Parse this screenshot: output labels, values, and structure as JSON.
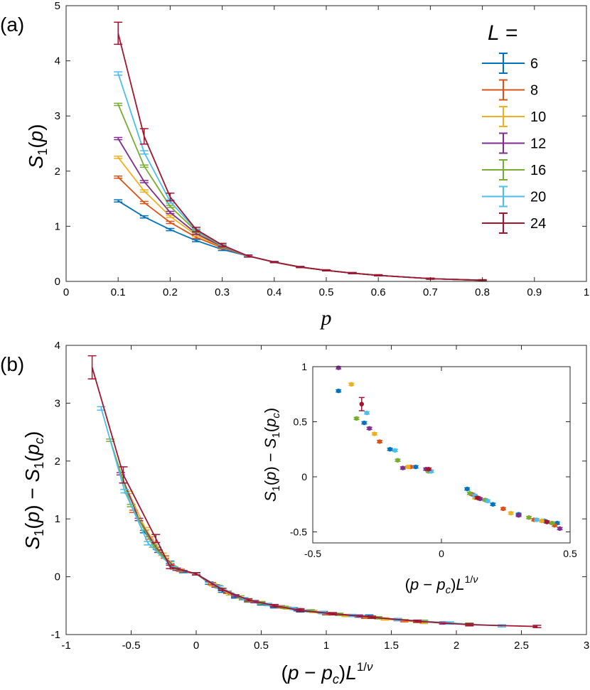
{
  "figure": {
    "panel_a_label": "(a)",
    "panel_b_label": "(b)"
  },
  "chart_data": [
    {
      "id": "a",
      "type": "line",
      "title": "",
      "xlabel": "p",
      "ylabel": "S_1(p)",
      "xlim": [
        0,
        1
      ],
      "ylim": [
        0,
        5
      ],
      "xticks": [
        0,
        0.1,
        0.2,
        0.3,
        0.4,
        0.5,
        0.6,
        0.7,
        0.8,
        0.9,
        1
      ],
      "xtick_labels": [
        "0",
        "0.1",
        "0.2",
        "0.3",
        "0.4",
        "0.5",
        "0.6",
        "0.7",
        "0.8",
        "0.9",
        "1"
      ],
      "yticks": [
        0,
        1,
        2,
        3,
        4,
        5
      ],
      "ytick_labels": [
        "0",
        "1",
        "2",
        "3",
        "4",
        "5"
      ],
      "reference_line": {
        "y": 0,
        "style": "dotted"
      },
      "legend": {
        "title": "L =",
        "position": "top-right",
        "labels": [
          "6",
          "8",
          "10",
          "12",
          "16",
          "20",
          "24"
        ]
      },
      "series": [
        {
          "name": "6",
          "color": "#0072BD",
          "x": [
            0.1,
            0.15,
            0.2,
            0.25,
            0.3,
            0.35,
            0.4,
            0.45,
            0.5,
            0.55,
            0.6,
            0.7,
            0.8
          ],
          "y": [
            1.46,
            1.17,
            0.94,
            0.74,
            0.58,
            0.46,
            0.35,
            0.26,
            0.2,
            0.15,
            0.11,
            0.05,
            0.02
          ],
          "err": [
            0.02,
            0.02,
            0.02,
            0.02,
            0.02,
            0.01,
            0.01,
            0.01,
            0.01,
            0.01,
            0.01,
            0.01,
            0.01
          ]
        },
        {
          "name": "8",
          "color": "#D95319",
          "x": [
            0.1,
            0.15,
            0.2,
            0.25,
            0.3,
            0.35,
            0.4,
            0.45,
            0.5,
            0.55,
            0.6,
            0.7,
            0.8
          ],
          "y": [
            1.89,
            1.43,
            1.07,
            0.8,
            0.61,
            0.46,
            0.35,
            0.26,
            0.2,
            0.15,
            0.11,
            0.05,
            0.02
          ],
          "err": [
            0.02,
            0.02,
            0.02,
            0.02,
            0.02,
            0.01,
            0.01,
            0.01,
            0.01,
            0.01,
            0.01,
            0.01,
            0.01
          ]
        },
        {
          "name": "10",
          "color": "#EDB120",
          "x": [
            0.1,
            0.15,
            0.2,
            0.25,
            0.3,
            0.35,
            0.4,
            0.45,
            0.5,
            0.55,
            0.6,
            0.7,
            0.8
          ],
          "y": [
            2.25,
            1.64,
            1.18,
            0.84,
            0.62,
            0.46,
            0.35,
            0.26,
            0.2,
            0.15,
            0.11,
            0.05,
            0.02
          ],
          "err": [
            0.02,
            0.02,
            0.02,
            0.02,
            0.02,
            0.01,
            0.01,
            0.01,
            0.01,
            0.01,
            0.01,
            0.01,
            0.01
          ]
        },
        {
          "name": "12",
          "color": "#7E2F8E",
          "x": [
            0.1,
            0.15,
            0.2,
            0.25,
            0.3,
            0.35,
            0.4,
            0.45,
            0.5,
            0.55,
            0.6,
            0.7,
            0.8
          ],
          "y": [
            2.59,
            1.81,
            1.25,
            0.87,
            0.63,
            0.46,
            0.35,
            0.26,
            0.2,
            0.15,
            0.11,
            0.05,
            0.02
          ],
          "err": [
            0.02,
            0.02,
            0.02,
            0.02,
            0.02,
            0.01,
            0.01,
            0.01,
            0.01,
            0.01,
            0.01,
            0.01,
            0.01
          ]
        },
        {
          "name": "16",
          "color": "#77AC30",
          "x": [
            0.1,
            0.15,
            0.2,
            0.25,
            0.3,
            0.35,
            0.4,
            0.45,
            0.5,
            0.55,
            0.6,
            0.7,
            0.8
          ],
          "y": [
            3.21,
            2.09,
            1.36,
            0.91,
            0.64,
            0.46,
            0.35,
            0.26,
            0.2,
            0.15,
            0.11,
            0.05,
            0.02
          ],
          "err": [
            0.02,
            0.02,
            0.02,
            0.02,
            0.02,
            0.01,
            0.01,
            0.01,
            0.01,
            0.01,
            0.01,
            0.01,
            0.01
          ]
        },
        {
          "name": "20",
          "color": "#4DBEEE",
          "x": [
            0.1,
            0.15,
            0.2,
            0.25,
            0.3,
            0.35,
            0.4,
            0.45,
            0.5,
            0.55,
            0.6,
            0.7,
            0.8
          ],
          "y": [
            3.77,
            2.34,
            1.45,
            0.93,
            0.65,
            0.46,
            0.35,
            0.26,
            0.2,
            0.15,
            0.11,
            0.05,
            0.02
          ],
          "err": [
            0.03,
            0.03,
            0.03,
            0.02,
            0.02,
            0.01,
            0.01,
            0.01,
            0.01,
            0.01,
            0.01,
            0.01,
            0.01
          ]
        },
        {
          "name": "24",
          "color": "#A2142F",
          "x": [
            0.1,
            0.15,
            0.2,
            0.25,
            0.3,
            0.35,
            0.4,
            0.45,
            0.5,
            0.55,
            0.6,
            0.7,
            0.8
          ],
          "y": [
            4.5,
            2.63,
            1.53,
            0.94,
            0.66,
            0.46,
            0.35,
            0.26,
            0.2,
            0.15,
            0.11,
            0.05,
            0.02
          ],
          "err": [
            0.2,
            0.14,
            0.07,
            0.04,
            0.03,
            0.02,
            0.01,
            0.01,
            0.01,
            0.01,
            0.01,
            0.01,
            0.01
          ]
        }
      ]
    },
    {
      "id": "b",
      "type": "line",
      "title": "",
      "xlabel": "(p - p_c) L^{1/ν}",
      "ylabel": "S_1(p) - S_1(p_c)",
      "xlim": [
        -1,
        3
      ],
      "ylim": [
        -1,
        4
      ],
      "xticks": [
        -1,
        -0.5,
        0,
        0.5,
        1,
        1.5,
        2,
        2.5,
        3
      ],
      "xtick_labels": [
        "-1",
        "-0.5",
        "0",
        "0.5",
        "1",
        "1.5",
        "2",
        "2.5",
        "3"
      ],
      "yticks": [
        -1,
        0,
        1,
        2,
        3,
        4
      ],
      "ytick_labels": [
        "-1",
        "0",
        "1",
        "2",
        "3",
        "4"
      ],
      "series": [
        {
          "name": "6",
          "color": "#0072BD",
          "x": [
            -0.4,
            -0.3,
            -0.2,
            -0.1,
            0,
            0.1,
            0.2,
            0.3,
            0.4,
            0.5,
            0.6,
            0.8,
            1.0,
            1.33
          ],
          "y": [
            0.78,
            0.49,
            0.25,
            0.09,
            0.05,
            -0.11,
            -0.25,
            -0.35,
            -0.42,
            -0.47,
            -0.52,
            -0.59,
            -0.64,
            -0.68
          ],
          "err": [
            0.02,
            0.02,
            0.02,
            0.02,
            0.02,
            0.02,
            0.02,
            0.02,
            0.02,
            0.02,
            0.02,
            0.02,
            0.02,
            0.02
          ]
        },
        {
          "name": "8",
          "color": "#D95319",
          "x": [
            -0.48,
            -0.36,
            -0.24,
            -0.12,
            0,
            0.12,
            0.24,
            0.36,
            0.5,
            0.65,
            0.8,
            1.0,
            1.3,
            1.6
          ],
          "y": [
            1.13,
            0.67,
            0.34,
            0.11,
            0.05,
            -0.12,
            -0.27,
            -0.38,
            -0.45,
            -0.52,
            -0.57,
            -0.64,
            -0.7,
            -0.76
          ],
          "err": [
            0.02,
            0.02,
            0.02,
            0.02,
            0.02,
            0.02,
            0.02,
            0.02,
            0.02,
            0.02,
            0.02,
            0.02,
            0.02,
            0.02
          ]
        },
        {
          "name": "10",
          "color": "#EDB120",
          "x": [
            -0.52,
            -0.39,
            -0.26,
            -0.13,
            0,
            0.13,
            0.26,
            0.4,
            0.55,
            0.7,
            0.9,
            1.15,
            1.45,
            1.75
          ],
          "y": [
            1.46,
            0.83,
            0.39,
            0.12,
            0.05,
            -0.14,
            -0.3,
            -0.41,
            -0.48,
            -0.54,
            -0.6,
            -0.67,
            -0.73,
            -0.79
          ],
          "err": [
            0.02,
            0.02,
            0.02,
            0.02,
            0.02,
            0.02,
            0.02,
            0.02,
            0.02,
            0.02,
            0.02,
            0.02,
            0.02,
            0.02
          ]
        },
        {
          "name": "12",
          "color": "#7E2F8E",
          "x": [
            -0.58,
            -0.44,
            -0.29,
            -0.15,
            0,
            0.15,
            0.3,
            0.45,
            0.6,
            0.78,
            0.98,
            1.25,
            1.55,
            1.9
          ],
          "y": [
            1.78,
            0.99,
            0.44,
            0.13,
            0.05,
            -0.16,
            -0.33,
            -0.43,
            -0.5,
            -0.57,
            -0.62,
            -0.68,
            -0.74,
            -0.8
          ],
          "err": [
            0.02,
            0.02,
            0.02,
            0.02,
            0.02,
            0.02,
            0.02,
            0.02,
            0.02,
            0.02,
            0.02,
            0.02,
            0.02,
            0.02
          ]
        },
        {
          "name": "16",
          "color": "#77AC30",
          "x": [
            -0.66,
            -0.5,
            -0.33,
            -0.17,
            0,
            0.17,
            0.34,
            0.5,
            0.68,
            0.88,
            1.1,
            1.4,
            1.75,
            2.1
          ],
          "y": [
            2.36,
            1.23,
            0.53,
            0.15,
            0.05,
            -0.17,
            -0.35,
            -0.45,
            -0.53,
            -0.59,
            -0.65,
            -0.71,
            -0.77,
            -0.82
          ],
          "err": [
            0.02,
            0.02,
            0.02,
            0.02,
            0.02,
            0.02,
            0.02,
            0.02,
            0.02,
            0.02,
            0.02,
            0.02,
            0.02,
            0.02
          ]
        },
        {
          "name": "20",
          "color": "#4DBEEE",
          "x": [
            -0.73,
            -0.55,
            -0.37,
            -0.18,
            0,
            0.18,
            0.37,
            0.55,
            0.75,
            0.97,
            1.2,
            1.55,
            1.95,
            2.35
          ],
          "y": [
            2.91,
            1.48,
            0.58,
            0.16,
            0.05,
            -0.18,
            -0.38,
            -0.48,
            -0.55,
            -0.62,
            -0.67,
            -0.74,
            -0.8,
            -0.85
          ],
          "err": [
            0.03,
            0.03,
            0.03,
            0.02,
            0.02,
            0.02,
            0.02,
            0.02,
            0.02,
            0.02,
            0.02,
            0.02,
            0.02,
            0.02
          ]
        },
        {
          "name": "24",
          "color": "#A2142F",
          "x": [
            -0.8,
            -0.56,
            -0.31,
            -0.2,
            0,
            0.2,
            0.4,
            0.6,
            0.8,
            1.05,
            1.35,
            1.7,
            2.1,
            2.62
          ],
          "y": [
            3.62,
            1.76,
            0.66,
            0.17,
            0.05,
            -0.22,
            -0.4,
            -0.5,
            -0.58,
            -0.64,
            -0.7,
            -0.77,
            -0.83,
            -0.86
          ],
          "err": [
            0.2,
            0.14,
            0.07,
            0.03,
            0.02,
            0.02,
            0.02,
            0.02,
            0.02,
            0.02,
            0.02,
            0.02,
            0.02,
            0.02
          ]
        }
      ]
    },
    {
      "id": "b-inset",
      "type": "scatter",
      "title": "",
      "xlabel": "(p - p_c) L^{1/ν}",
      "ylabel": "S_1(p) - S_1(p_c)",
      "xlim": [
        -0.5,
        0.5
      ],
      "ylim": [
        -0.6,
        1.0
      ],
      "xticks": [
        -0.5,
        0,
        0.5
      ],
      "xtick_labels": [
        "-0.5",
        "0",
        "0.5"
      ],
      "yticks": [
        -0.5,
        0,
        0.5,
        1
      ],
      "ytick_labels": [
        "-0.5",
        "0",
        "0.5",
        "1"
      ],
      "series": [
        {
          "name": "6",
          "color": "#0072BD",
          "x": [
            -0.4,
            -0.3,
            -0.2,
            -0.1,
            -0.04,
            0.1,
            0.2,
            0.3,
            0.4,
            0.45
          ],
          "y": [
            0.78,
            0.49,
            0.25,
            0.09,
            0.05,
            -0.11,
            -0.25,
            -0.34,
            -0.4,
            -0.42
          ],
          "err": [
            0.01,
            0.01,
            0.01,
            0.01,
            0.01,
            0.01,
            0.01,
            0.01,
            0.01,
            0.01
          ]
        },
        {
          "name": "8",
          "color": "#D95319",
          "x": [
            -0.24,
            -0.12,
            -0.05,
            0.12,
            0.24,
            0.36,
            0.44
          ],
          "y": [
            0.32,
            0.09,
            0.06,
            -0.16,
            -0.29,
            -0.39,
            -0.44
          ],
          "err": [
            0.01,
            0.01,
            0.01,
            0.01,
            0.01,
            0.01,
            0.01
          ]
        },
        {
          "name": "10",
          "color": "#EDB120",
          "x": [
            -0.35,
            -0.26,
            -0.13,
            -0.05,
            0.13,
            0.27,
            0.39
          ],
          "y": [
            0.84,
            0.39,
            0.09,
            0.06,
            -0.19,
            -0.33,
            -0.4
          ],
          "err": [
            0.01,
            0.01,
            0.01,
            0.01,
            0.01,
            0.01,
            0.01
          ]
        },
        {
          "name": "12",
          "color": "#7E2F8E",
          "x": [
            -0.4,
            -0.28,
            -0.15,
            -0.06,
            0.15,
            0.3,
            0.46
          ],
          "y": [
            0.99,
            0.44,
            0.08,
            0.07,
            -0.2,
            -0.35,
            -0.47
          ],
          "err": [
            0.01,
            0.01,
            0.01,
            0.01,
            0.01,
            0.01,
            0.01
          ]
        },
        {
          "name": "16",
          "color": "#77AC30",
          "x": [
            -0.33,
            -0.17,
            -0.05,
            0.11,
            0.17,
            0.34,
            0.43
          ],
          "y": [
            0.53,
            0.15,
            0.05,
            -0.15,
            -0.21,
            -0.37,
            -0.42
          ],
          "err": [
            0.01,
            0.01,
            0.01,
            0.01,
            0.01,
            0.01,
            0.01
          ]
        },
        {
          "name": "20",
          "color": "#4DBEEE",
          "x": [
            -0.29,
            -0.18,
            -0.04,
            0.13,
            0.18,
            0.37
          ],
          "y": [
            0.58,
            0.24,
            0.05,
            -0.17,
            -0.22,
            -0.39
          ],
          "err": [
            0.01,
            0.01,
            0.01,
            0.01,
            0.01,
            0.01
          ]
        },
        {
          "name": "24",
          "color": "#A2142F",
          "x": [
            -0.31,
            -0.05,
            0.14,
            0.41
          ],
          "y": [
            0.66,
            0.07,
            -0.19,
            -0.41
          ],
          "err": [
            0.06,
            0.01,
            0.01,
            0.01
          ]
        }
      ]
    }
  ]
}
